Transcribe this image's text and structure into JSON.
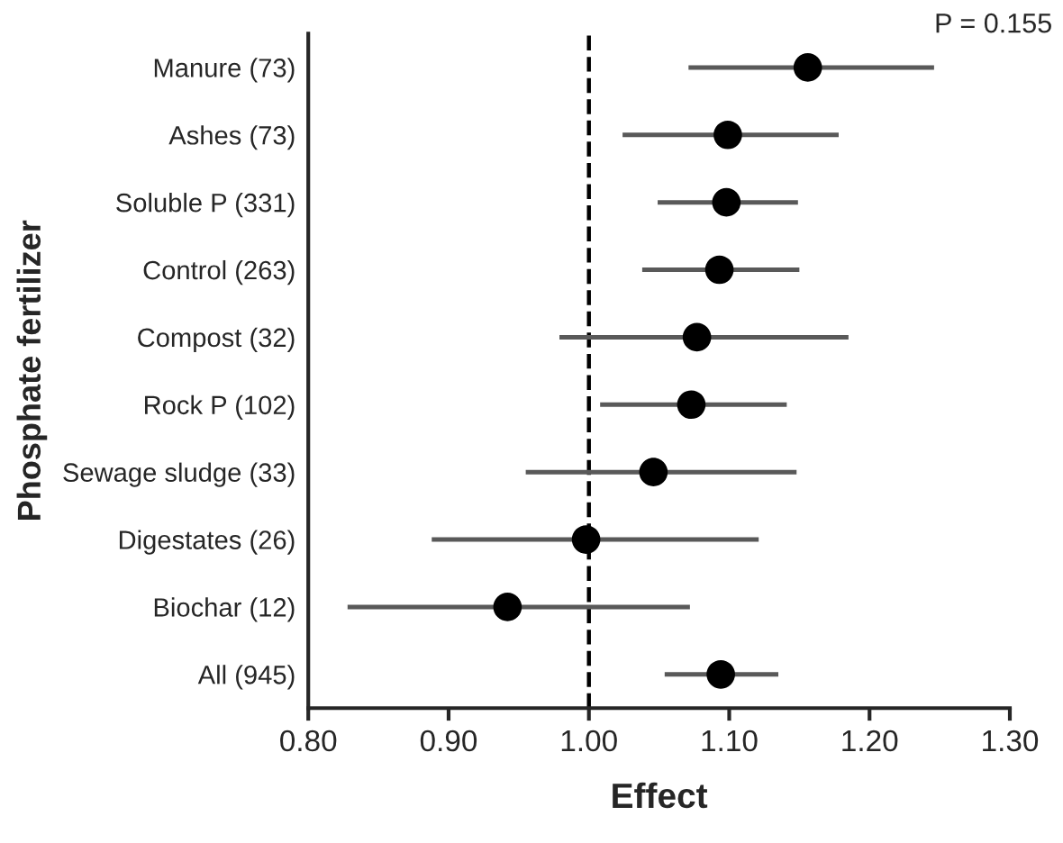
{
  "chart_data": {
    "type": "scatter",
    "orientation": "horizontal",
    "xlabel": "Effect",
    "ylabel": "Phosphate fertilizer",
    "categories": [
      "Manure (73)",
      "Ashes (73)",
      "Soluble P (331)",
      "Control (263)",
      "Compost (32)",
      "Rock P (102)",
      "Sewage sludge (33)",
      "Digestates (26)",
      "Biochar (12)",
      "All (945)"
    ],
    "series": [
      {
        "color": "#000000",
        "values": [
          1.156,
          1.099,
          1.098,
          1.093,
          1.077,
          1.073,
          1.046,
          0.998,
          0.942,
          1.094
        ],
        "errors": [
          [
            1.071,
            1.246
          ],
          [
            1.024,
            1.178
          ],
          [
            1.049,
            1.149
          ],
          [
            1.038,
            1.15
          ],
          [
            0.979,
            1.185
          ],
          [
            1.008,
            1.141
          ],
          [
            0.955,
            1.148
          ],
          [
            0.888,
            1.121
          ],
          [
            0.828,
            1.072
          ],
          [
            1.054,
            1.135
          ]
        ]
      }
    ],
    "xlim": [
      0.8,
      1.3
    ],
    "xticks": [
      {
        "value": 0.8,
        "label": "0.80"
      },
      {
        "value": 0.9,
        "label": "0.90"
      },
      {
        "value": 1.0,
        "label": "1.00"
      },
      {
        "value": 1.1,
        "label": "1.10"
      },
      {
        "value": 1.2,
        "label": "1.20"
      },
      {
        "value": 1.3,
        "label": "1.30"
      }
    ],
    "ref_lines": [
      {
        "axis": "x",
        "value": 1.0,
        "color": "#000000",
        "line_style": "dashed"
      }
    ],
    "annotations": [
      "P = 0.155"
    ],
    "marker": "circle",
    "grid": false,
    "legend": false
  }
}
